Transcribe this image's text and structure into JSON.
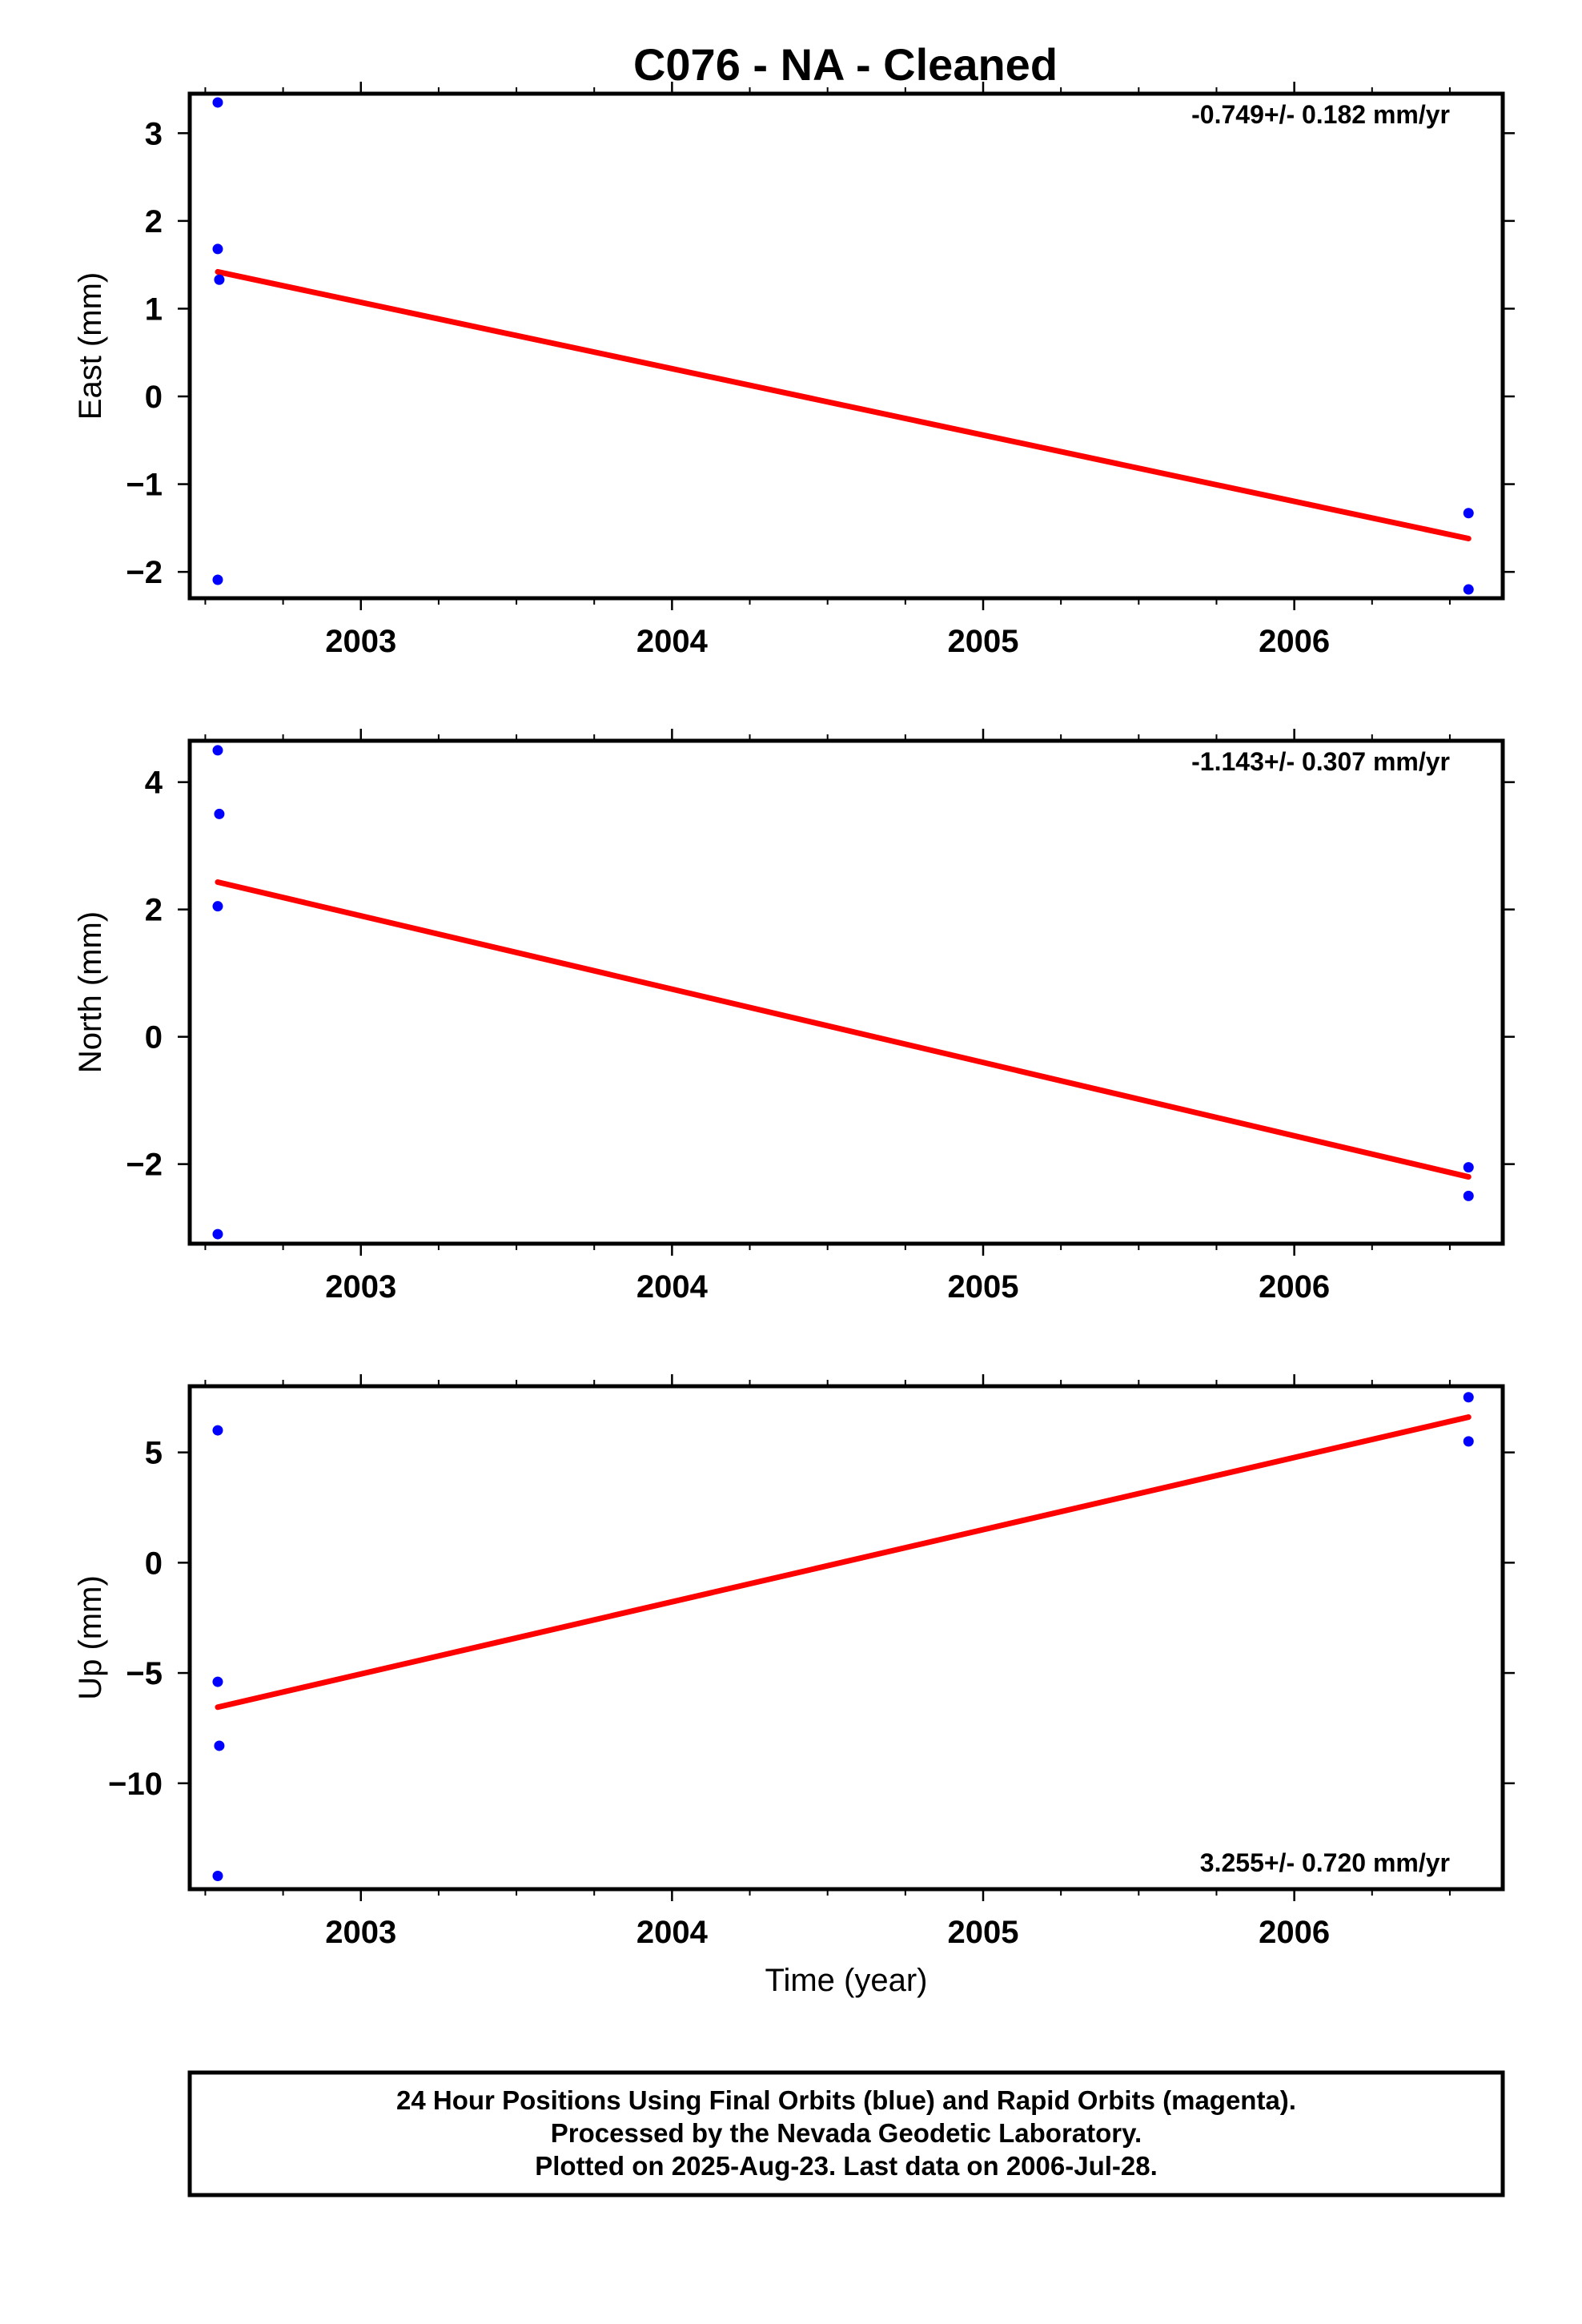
{
  "title": "C076  - NA - Cleaned",
  "footer": {
    "line1": "24 Hour Positions Using Final Orbits (blue) and Rapid Orbits (magenta).",
    "line2": "Processed by the Nevada Geodetic Laboratory.",
    "line3": "Plotted on 2025-Aug-23. Last data on 2006-Jul-28."
  },
  "colors": {
    "points": "#0000ff",
    "fit": "#ff0000",
    "frame": "#000000"
  },
  "chart_data": [
    {
      "type": "scatter",
      "ylabel": "East (mm)",
      "xlabel": "",
      "rate": "-0.749+/- 0.182 mm/yr",
      "rate_position": "top-right",
      "xlim": [
        2002.45,
        2006.67
      ],
      "ylim": [
        -2.3,
        3.45
      ],
      "x_ticks": [
        2003,
        2004,
        2005,
        2006
      ],
      "y_ticks": [
        -2,
        -1,
        0,
        1,
        2,
        3
      ],
      "points": [
        {
          "x": 2002.54,
          "y": 3.35
        },
        {
          "x": 2002.54,
          "y": 1.68
        },
        {
          "x": 2002.545,
          "y": 1.33
        },
        {
          "x": 2002.54,
          "y": -2.09
        },
        {
          "x": 2006.56,
          "y": -1.33
        },
        {
          "x": 2006.56,
          "y": -2.2
        }
      ],
      "fit": [
        {
          "x": 2002.54,
          "y": 1.42
        },
        {
          "x": 2006.56,
          "y": -1.62
        }
      ]
    },
    {
      "type": "scatter",
      "ylabel": "North (mm)",
      "xlabel": "",
      "rate": "-1.143+/- 0.307 mm/yr",
      "rate_position": "top-right",
      "xlim": [
        2002.45,
        2006.67
      ],
      "ylim": [
        -3.25,
        4.65
      ],
      "x_ticks": [
        2003,
        2004,
        2005,
        2006
      ],
      "y_ticks": [
        -2,
        0,
        2,
        4
      ],
      "points": [
        {
          "x": 2002.54,
          "y": 4.5
        },
        {
          "x": 2002.545,
          "y": 3.5
        },
        {
          "x": 2002.54,
          "y": 2.05
        },
        {
          "x": 2002.54,
          "y": -3.1
        },
        {
          "x": 2006.56,
          "y": -2.05
        },
        {
          "x": 2006.56,
          "y": -2.5
        }
      ],
      "fit": [
        {
          "x": 2002.54,
          "y": 2.43
        },
        {
          "x": 2006.56,
          "y": -2.2
        }
      ]
    },
    {
      "type": "scatter",
      "ylabel": "Up (mm)",
      "xlabel": "Time (year)",
      "rate": "3.255+/- 0.720 mm/yr",
      "rate_position": "bottom-right",
      "xlim": [
        2002.45,
        2006.67
      ],
      "ylim": [
        -14.8,
        8.0
      ],
      "x_ticks": [
        2003,
        2004,
        2005,
        2006
      ],
      "y_ticks": [
        -10,
        -5,
        0,
        5
      ],
      "points": [
        {
          "x": 2002.54,
          "y": 6.0
        },
        {
          "x": 2002.54,
          "y": -5.4
        },
        {
          "x": 2002.545,
          "y": -8.3
        },
        {
          "x": 2002.54,
          "y": -14.2
        },
        {
          "x": 2006.56,
          "y": 7.5
        },
        {
          "x": 2006.56,
          "y": 5.5
        }
      ],
      "fit": [
        {
          "x": 2002.54,
          "y": -6.55
        },
        {
          "x": 2006.56,
          "y": 6.6
        }
      ]
    }
  ]
}
